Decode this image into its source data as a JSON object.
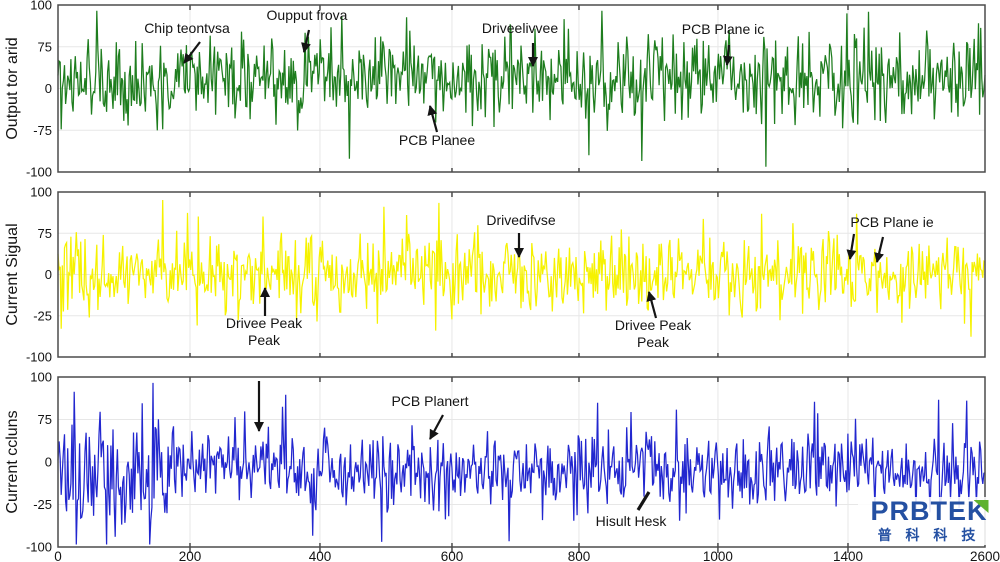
{
  "watermark": {
    "brand": "PRBTEK",
    "chinese": "普 科 科 技",
    "brand_color": "#2450a2",
    "accent_color": "#5fb22e"
  },
  "chart_data": {
    "type": "line",
    "title": "",
    "xlabel": "",
    "grid": true,
    "legend": "none",
    "x_axis": {
      "ticks": [
        {
          "label": "0",
          "f": 0.0
        },
        {
          "label": "200",
          "f": 0.1424
        },
        {
          "label": "400",
          "f": 0.2826
        },
        {
          "label": "600",
          "f": 0.425
        },
        {
          "label": "800",
          "f": 0.562
        },
        {
          "label": "1000",
          "f": 0.7119
        },
        {
          "label": "1400",
          "f": 0.8522
        },
        {
          "label": "2600",
          "f": 1.0
        }
      ]
    },
    "subplots": [
      {
        "name": "top",
        "ylabel": "Output tor arid",
        "color": "#1e7d1e",
        "y_tick_labels": [
          "100",
          "75",
          "0",
          "-75",
          "-100"
        ],
        "ylim": [
          -100,
          100
        ],
        "signal": {
          "description": "dense random noise; mean ~ +12, typical swing -45..+65, occasional spikes to about +90 / -55",
          "seed": 101,
          "n": 860,
          "mean": 12,
          "amp": 88,
          "spike_prob": 0.018,
          "spike_neg_scale": 0.6
        },
        "annotations": [
          {
            "text": "Chip teontvsa",
            "x": 187,
            "y": 33,
            "arrows": [
              [
                200,
                42,
                184,
                63
              ]
            ]
          },
          {
            "text": "Oupput frova",
            "x": 307,
            "y": 20,
            "arrows": [
              [
                309,
                30,
                304,
                52
              ]
            ]
          },
          {
            "text": "Driveelivvee",
            "x": 520,
            "y": 33,
            "arrows": [
              [
                533,
                43,
                533,
                66
              ]
            ]
          },
          {
            "text": "PCB Plane ic",
            "x": 723,
            "y": 34,
            "arrows": [
              [
                729,
                45,
                727,
                65
              ]
            ]
          },
          {
            "text": "PCB Planee",
            "x": 437,
            "y": 145,
            "arrows": [
              [
                437,
                132,
                430,
                106
              ]
            ]
          }
        ]
      },
      {
        "name": "middle",
        "ylabel": "Current Sigual",
        "color": "#f6f200",
        "y_tick_labels": [
          "100",
          "75",
          "0",
          "-25",
          "-100"
        ],
        "ylim": [
          -100,
          100
        ],
        "signal": {
          "description": "dense random noise; mean ~ 0, typical swing -35..+45, tall positive spikes to about +85",
          "seed": 207,
          "n": 860,
          "mean": 1,
          "amp": 80,
          "spike_prob": 0.02,
          "spike_neg_scale": 0.45
        },
        "annotations": [
          {
            "text": "Drivedifvse",
            "x": 521,
            "y": 225,
            "arrows": [
              [
                519,
                233,
                519,
                257
              ]
            ]
          },
          {
            "text": "PCB Plane ie",
            "x": 892,
            "y": 227,
            "arrows": [
              [
                854,
                234,
                850,
                259
              ],
              [
                883,
                237,
                877,
                262
              ]
            ]
          },
          {
            "text": "Drivee Peak",
            "line2": "Peak",
            "x": 264,
            "y": 328,
            "arrows": [
              [
                265,
                316,
                265,
                288
              ]
            ]
          },
          {
            "text": "Drivee Peak",
            "line2": "Peak",
            "x": 653,
            "y": 330,
            "arrows": [
              [
                656,
                318,
                649,
                292
              ]
            ]
          }
        ]
      },
      {
        "name": "bottom",
        "ylabel": "Current ccluns",
        "color": "#2227cf",
        "y_tick_labels": [
          "100",
          "75",
          "0",
          "-25",
          "-100"
        ],
        "ylim": [
          -100,
          100
        ],
        "signal": {
          "description": "dense random noise; mean ~ -10, larger amplitude over first ~13% of span, spikes to about +85 / -50",
          "seed": 309,
          "n": 860,
          "mean": -9,
          "amp": 78,
          "spike_prob": 0.02,
          "spike_neg_scale": 0.5,
          "early_boost": {
            "until_f": 0.13,
            "mult": 1.55
          }
        },
        "annotations": [
          {
            "text": "",
            "x": 259,
            "y": 0,
            "arrows": [
              [
                259,
                381,
                259,
                431
              ]
            ]
          },
          {
            "text": "PCB Planert",
            "x": 430,
            "y": 406,
            "arrows": [
              [
                443,
                415,
                430,
                439
              ]
            ]
          },
          {
            "text": "Hisult Hesk",
            "x": 631,
            "y": 526,
            "arrows": [
              [
                649,
                492,
                638,
                510
              ]
            ],
            "head": false
          }
        ]
      }
    ]
  }
}
